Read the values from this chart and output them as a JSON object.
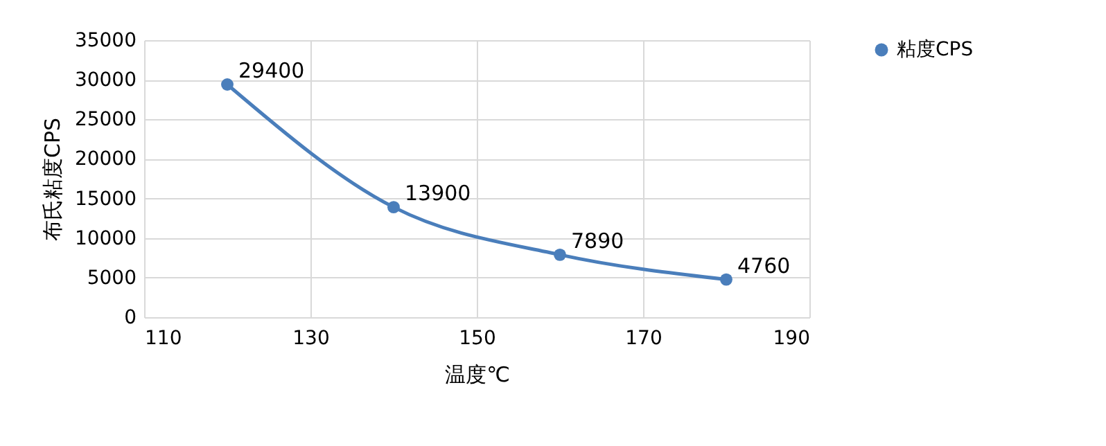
{
  "chart_data": {
    "type": "line",
    "xlabel": "温度℃",
    "ylabel": "布氏粘度CPS",
    "x": [
      120,
      140,
      160,
      180
    ],
    "series": [
      {
        "name": "粘度CPS",
        "color": "#4a7ebb",
        "values": [
          29400,
          13900,
          7890,
          4760
        ]
      }
    ],
    "xlim": [
      110,
      190
    ],
    "xticks": [
      110,
      130,
      150,
      170,
      190
    ],
    "ylim": [
      0,
      35000
    ],
    "yticks": [
      0,
      5000,
      10000,
      15000,
      20000,
      25000,
      30000,
      35000
    ],
    "grid": true,
    "legend": "right",
    "marker": "circle",
    "line_style": "solid",
    "data_labels": true
  }
}
